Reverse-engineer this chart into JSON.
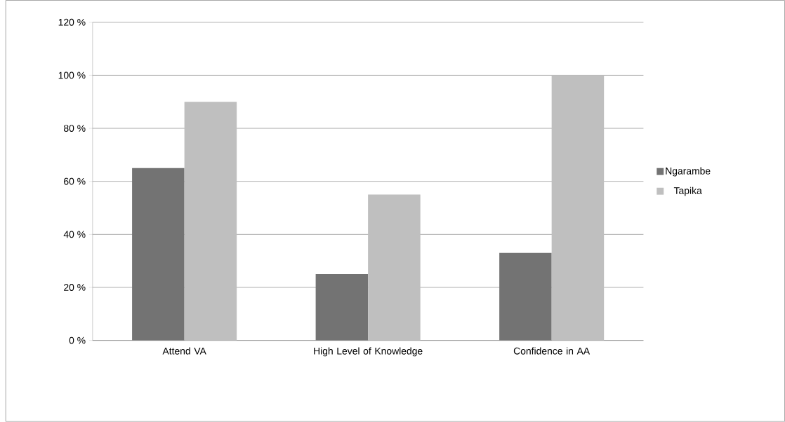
{
  "chart_data": {
    "type": "bar",
    "categories": [
      "Attend VA",
      "High Level of Knowledge",
      "Confidence in AA"
    ],
    "series": [
      {
        "name": "Ngarambe",
        "color": "#737373",
        "values": [
          65,
          25,
          33
        ]
      },
      {
        "name": "Tapika",
        "color": "#bfbfbf",
        "values": [
          90,
          55,
          100
        ]
      }
    ],
    "ylim": [
      0,
      120
    ],
    "yticks": [
      {
        "value": 0,
        "label": "0 %"
      },
      {
        "value": 20,
        "label": "20 %"
      },
      {
        "value": 40,
        "label": "40 %"
      },
      {
        "value": 60,
        "label": "60 %"
      },
      {
        "value": 80,
        "label": "80 %"
      },
      {
        "value": 100,
        "label": "100 %"
      },
      {
        "value": 120,
        "label": "120 %"
      }
    ],
    "grid": "y",
    "legend": "right"
  }
}
